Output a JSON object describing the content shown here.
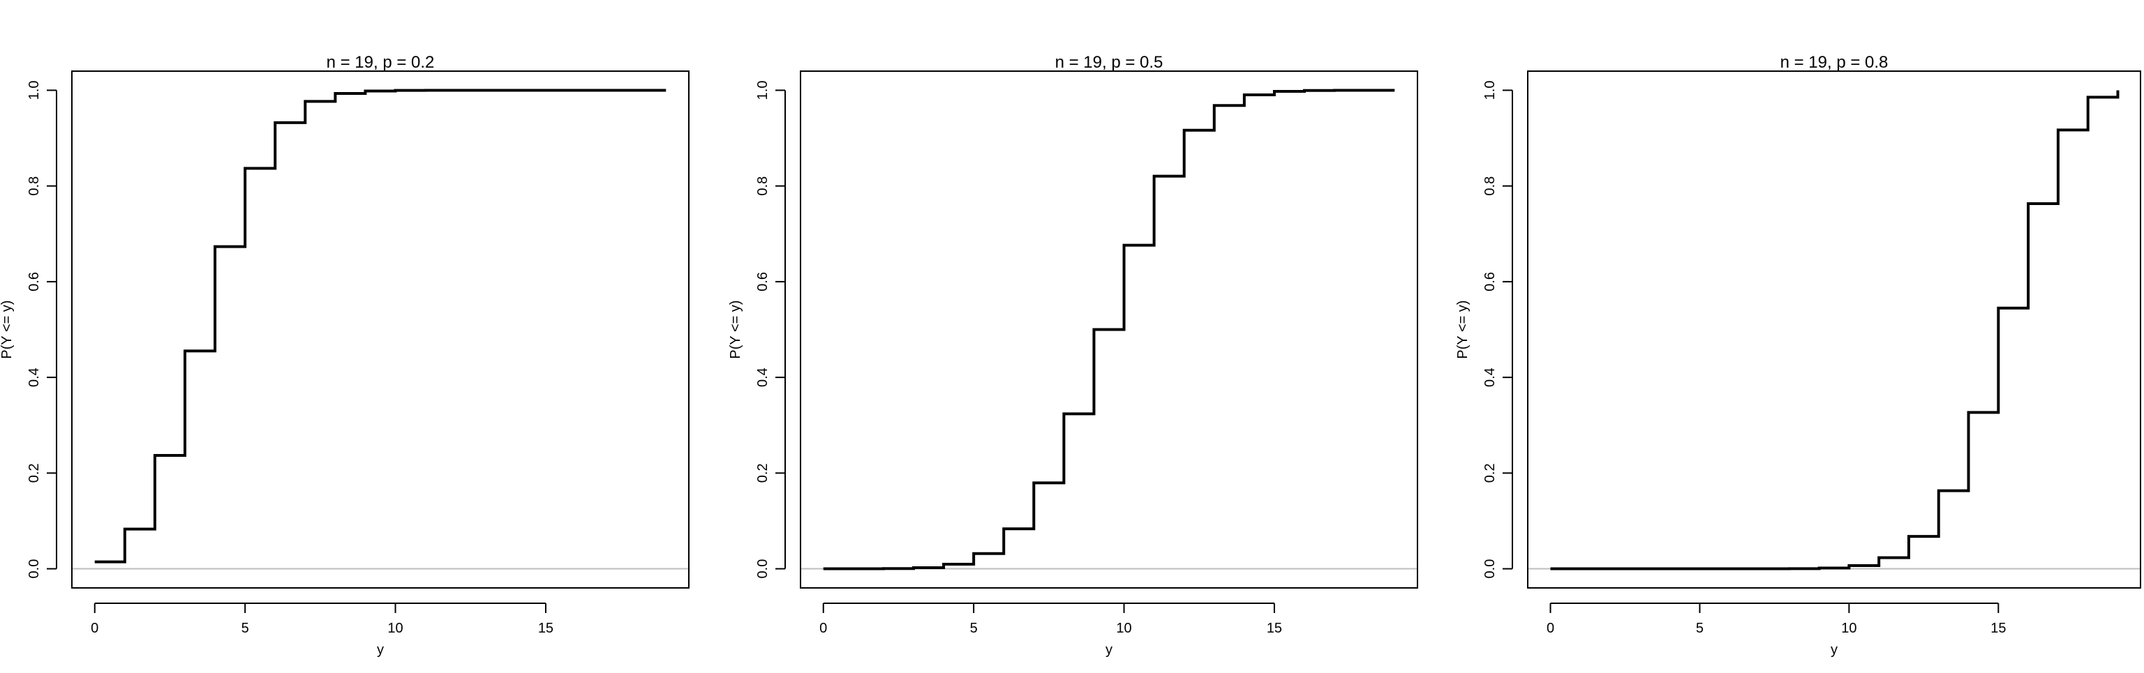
{
  "colors": {
    "line": "#000000",
    "zero_line": "#bebebe",
    "frame": "#000000",
    "background": "#ffffff"
  },
  "chart_data": [
    {
      "type": "line",
      "step": true,
      "title": "n = 19, p = 0.2",
      "xlabel": "y",
      "ylabel": "P(Y <= y)",
      "xlim": [
        0,
        19
      ],
      "ylim": [
        0,
        1
      ],
      "xticks": [
        0,
        5,
        10,
        15
      ],
      "yticks": [
        0.0,
        0.2,
        0.4,
        0.6,
        0.8,
        1.0
      ],
      "ytick_labels": [
        "0.0",
        "0.2",
        "0.4",
        "0.6",
        "0.8",
        "1.0"
      ],
      "grid": false,
      "legend": "none",
      "reference_line_y": 0,
      "x": [
        0,
        1,
        2,
        3,
        4,
        5,
        6,
        7,
        8,
        9,
        10,
        11,
        12,
        13,
        14,
        15,
        16,
        17,
        18,
        19
      ],
      "values": [
        0.0144,
        0.0829,
        0.2369,
        0.4551,
        0.6733,
        0.8369,
        0.9324,
        0.9767,
        0.9933,
        0.9984,
        0.9997,
        0.9999,
        1.0,
        1.0,
        1.0,
        1.0,
        1.0,
        1.0,
        1.0,
        1.0
      ]
    },
    {
      "type": "line",
      "step": true,
      "title": "n = 19, p = 0.5",
      "xlabel": "y",
      "ylabel": "P(Y <= y)",
      "xlim": [
        0,
        19
      ],
      "ylim": [
        0,
        1
      ],
      "xticks": [
        0,
        5,
        10,
        15
      ],
      "yticks": [
        0.0,
        0.2,
        0.4,
        0.6,
        0.8,
        1.0
      ],
      "ytick_labels": [
        "0.0",
        "0.2",
        "0.4",
        "0.6",
        "0.8",
        "1.0"
      ],
      "grid": false,
      "legend": "none",
      "reference_line_y": 0,
      "x": [
        0,
        1,
        2,
        3,
        4,
        5,
        6,
        7,
        8,
        9,
        10,
        11,
        12,
        13,
        14,
        15,
        16,
        17,
        18,
        19
      ],
      "values": [
        0.0,
        0.0,
        0.0004,
        0.0022,
        0.0096,
        0.0318,
        0.0835,
        0.1796,
        0.3238,
        0.5,
        0.6762,
        0.8204,
        0.9165,
        0.9682,
        0.9904,
        0.9978,
        0.9996,
        1.0,
        1.0,
        1.0
      ]
    },
    {
      "type": "line",
      "step": true,
      "title": "n = 19, p = 0.8",
      "xlabel": "y",
      "ylabel": "P(Y <= y)",
      "xlim": [
        0,
        19
      ],
      "ylim": [
        0,
        1
      ],
      "xticks": [
        0,
        5,
        10,
        15
      ],
      "yticks": [
        0.0,
        0.2,
        0.4,
        0.6,
        0.8,
        1.0
      ],
      "ytick_labels": [
        "0.0",
        "0.2",
        "0.4",
        "0.6",
        "0.8",
        "1.0"
      ],
      "grid": false,
      "legend": "none",
      "reference_line_y": 0,
      "x": [
        0,
        1,
        2,
        3,
        4,
        5,
        6,
        7,
        8,
        9,
        10,
        11,
        12,
        13,
        14,
        15,
        16,
        17,
        18,
        19
      ],
      "values": [
        0.0,
        0.0,
        0.0,
        0.0,
        0.0,
        0.0,
        0.0,
        0.0,
        0.0003,
        0.0016,
        0.0067,
        0.0233,
        0.0676,
        0.1631,
        0.3267,
        0.5449,
        0.7631,
        0.9171,
        0.9856,
        1.0
      ]
    }
  ]
}
